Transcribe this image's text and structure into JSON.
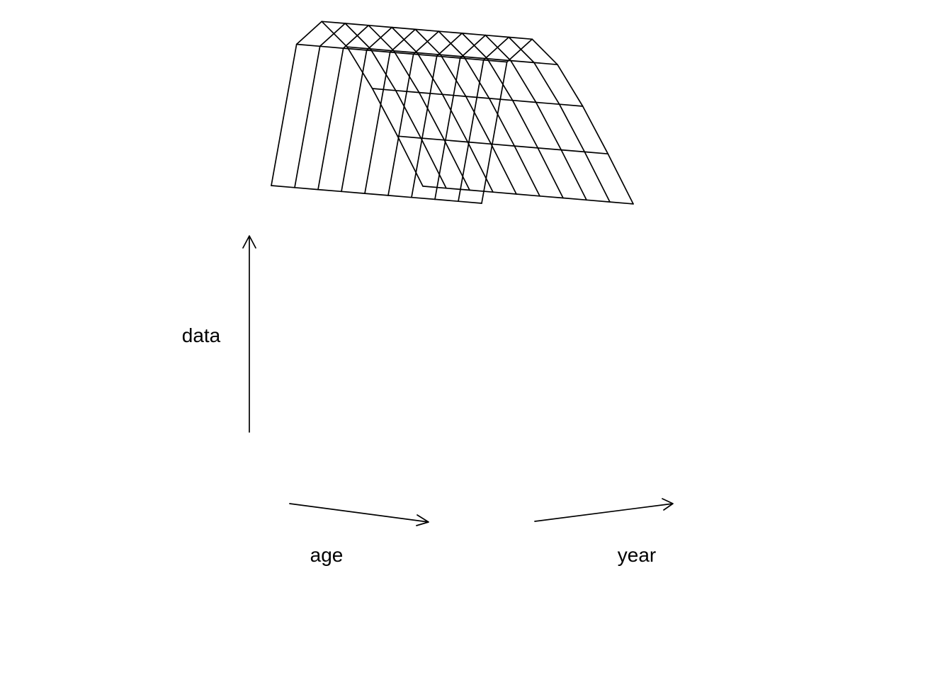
{
  "chart_data": {
    "type": "surface",
    "x_label": "age",
    "y_label": "year",
    "z_label": "data",
    "grid": false,
    "colors": {
      "line": "#000000",
      "background": "#ffffff"
    },
    "age_levels": 7,
    "year_levels": 10,
    "age_profile": [
      1.0,
      0.38,
      0.14,
      0.055,
      0.022,
      0.008,
      0.002
    ]
  }
}
